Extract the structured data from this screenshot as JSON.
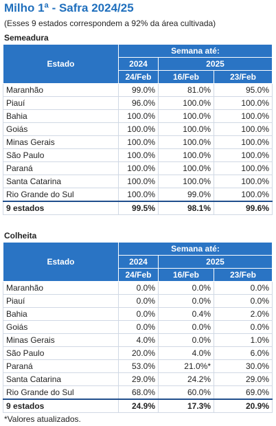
{
  "title": "Milho 1ª - Safra 2024/25",
  "subtitle": "(Esses 9 estados correspondem a 92% da área cultivada)",
  "sections": [
    {
      "name": "Semeadura",
      "header": {
        "estado": "Estado",
        "semana": "Semana até:",
        "years": [
          "2024",
          "2025"
        ],
        "dates": [
          "24/Feb",
          "16/Feb",
          "23/Feb"
        ]
      },
      "rows": [
        [
          "Maranhão",
          "99.0%",
          "81.0%",
          "95.0%"
        ],
        [
          "Piauí",
          "96.0%",
          "100.0%",
          "100.0%"
        ],
        [
          "Bahia",
          "100.0%",
          "100.0%",
          "100.0%"
        ],
        [
          "Goiás",
          "100.0%",
          "100.0%",
          "100.0%"
        ],
        [
          "Minas Gerais",
          "100.0%",
          "100.0%",
          "100.0%"
        ],
        [
          "São Paulo",
          "100.0%",
          "100.0%",
          "100.0%"
        ],
        [
          "Paraná",
          "100.0%",
          "100.0%",
          "100.0%"
        ],
        [
          "Santa Catarina",
          "100.0%",
          "100.0%",
          "100.0%"
        ],
        [
          "Rio Grande do Sul",
          "100.0%",
          "99.0%",
          "100.0%"
        ]
      ],
      "total": [
        "9 estados",
        "99.5%",
        "98.1%",
        "99.6%"
      ]
    },
    {
      "name": "Colheita",
      "header": {
        "estado": "Estado",
        "semana": "Semana até:",
        "years": [
          "2024",
          "2025"
        ],
        "dates": [
          "24/Feb",
          "16/Feb",
          "23/Feb"
        ]
      },
      "rows": [
        [
          "Maranhão",
          "0.0%",
          "0.0%",
          "0.0%"
        ],
        [
          "Piauí",
          "0.0%",
          "0.0%",
          "0.0%"
        ],
        [
          "Bahia",
          "0.0%",
          "0.4%",
          "2.0%"
        ],
        [
          "Goiás",
          "0.0%",
          "0.0%",
          "0.0%"
        ],
        [
          "Minas Gerais",
          "4.0%",
          "0.0%",
          "1.0%"
        ],
        [
          "São Paulo",
          "20.0%",
          "4.0%",
          "6.0%"
        ],
        [
          "Paraná",
          "53.0%",
          "21.0%*",
          "30.0%"
        ],
        [
          "Santa Catarina",
          "29.0%",
          "24.2%",
          "29.0%"
        ],
        [
          "Rio Grande do Sul",
          "68.0%",
          "60.0%",
          "69.0%"
        ]
      ],
      "total": [
        "9 estados",
        "24.9%",
        "17.3%",
        "20.9%"
      ]
    }
  ],
  "footnote": "*Valores atualizados."
}
